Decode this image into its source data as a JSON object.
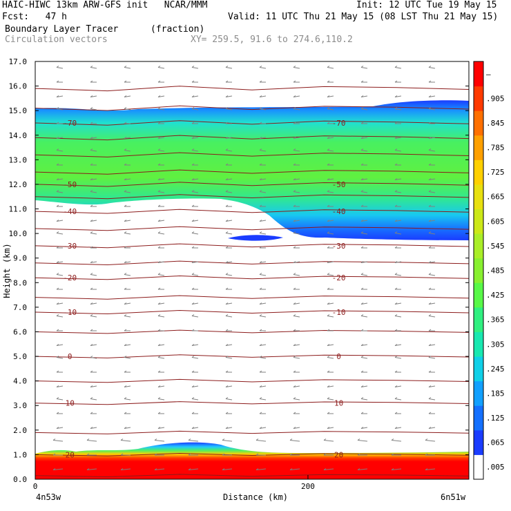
{
  "header": {
    "line1_left": "HAIC-HIWC 13km ARW-GFS init   NCAR/MMM",
    "line1_right": "Init: 12 UTC Tue 19 May 15",
    "line2_left": "Fcst:   47 h",
    "line2_right": "Valid: 11 UTC Thu 21 May 15 (08 LST Thu 21 May 15)",
    "field_name": "Boundary Layer Tracer",
    "field_units": "(fraction)",
    "vector_label": "Circulation vectors",
    "xy_label": "XY= 259.5, 91.6 to 274.6,110.2"
  },
  "colors": {
    "frame": "#000000",
    "contour": "#8b1a1a",
    "vector": "#808080",
    "header_grey": "#8c8c8c"
  },
  "chart_data": {
    "type": "heatmap",
    "title": "Boundary Layer Tracer",
    "xlabel": "Distance (km)",
    "ylabel": "Height (km)",
    "xlim": [
      0,
      318
    ],
    "ylim": [
      0,
      17
    ],
    "x_ticks": [
      {
        "value": 0,
        "label": "0"
      },
      {
        "value": 200,
        "label": "200"
      }
    ],
    "x_end_labels": {
      "left": "4n53w",
      "right": "6n51w"
    },
    "y_ticks": [
      "0.0",
      "1.0",
      "2.0",
      "3.0",
      "4.0",
      "5.0",
      "6.0",
      "7.0",
      "8.0",
      "9.0",
      "10.0",
      "11.0",
      "12.0",
      "13.0",
      "14.0",
      "15.0",
      "16.0",
      "17.0"
    ],
    "colorbar": {
      "labels": [
        ".005",
        ".065",
        ".125",
        ".185",
        ".245",
        ".305",
        ".365",
        ".425",
        ".485",
        ".545",
        ".605",
        ".665",
        ".725",
        ".785",
        ".845",
        ".905",
        "–"
      ],
      "colors": [
        "#ffffff",
        "#1a3cff",
        "#1470ff",
        "#12a0ff",
        "#10d0e8",
        "#18e8b0",
        "#30f080",
        "#58f848",
        "#88f030",
        "#aaee28",
        "#cce818",
        "#e8e010",
        "#ffd000",
        "#ffa000",
        "#ff7000",
        "#ff3a00",
        "#ff0000"
      ]
    },
    "grid": false,
    "tracer_layers": [
      {
        "name": "boundary_layer",
        "value_range": "0.7-1.0",
        "description_levels": [
          0.0,
          1.4
        ]
      },
      {
        "name": "upper_layer",
        "value_range": "0.005-0.5",
        "description_levels": [
          10.8,
          15.3
        ]
      }
    ],
    "temperature_contours": [
      {
        "label": "20",
        "height_km": 1.0
      },
      {
        "label": "10",
        "height_km": 3.1
      },
      {
        "label": "0",
        "height_km": 5.0
      },
      {
        "label": "-10",
        "height_km": 6.8
      },
      {
        "label": "-20",
        "height_km": 8.2
      },
      {
        "label": "-30",
        "height_km": 9.5
      },
      {
        "label": "-40",
        "height_km": 10.9
      },
      {
        "label": "-50",
        "height_km": 12.0
      },
      {
        "label": "-70",
        "height_km": 14.5
      }
    ]
  }
}
